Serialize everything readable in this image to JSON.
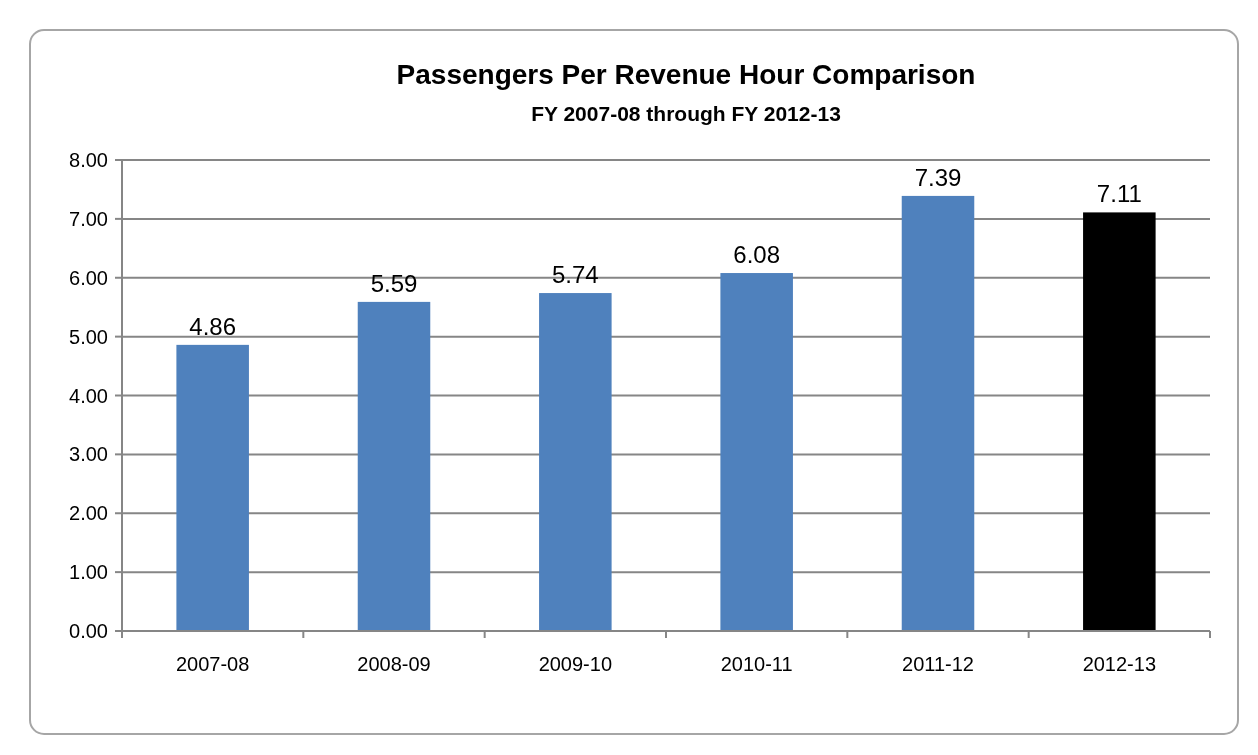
{
  "chart_data": {
    "type": "bar",
    "title": "Passengers Per Revenue Hour Comparison",
    "subtitle": "FY 2007-08 through FY 2012-13",
    "categories": [
      "2007-08",
      "2008-09",
      "2009-10",
      "2010-11",
      "2011-12",
      "2012-13"
    ],
    "values": [
      4.86,
      5.59,
      5.74,
      6.08,
      7.39,
      7.11
    ],
    "colors": [
      "#4f81bd",
      "#4f81bd",
      "#4f81bd",
      "#4f81bd",
      "#4f81bd",
      "#000000"
    ],
    "ylim": [
      0,
      8
    ],
    "yticks": [
      {
        "value": 0,
        "label": "0.00"
      },
      {
        "value": 1,
        "label": "1.00"
      },
      {
        "value": 2,
        "label": "2.00"
      },
      {
        "value": 3,
        "label": "3.00"
      },
      {
        "value": 4,
        "label": "4.00"
      },
      {
        "value": 5,
        "label": "5.00"
      },
      {
        "value": 6,
        "label": "6.00"
      },
      {
        "value": 7,
        "label": "7.00"
      },
      {
        "value": 8,
        "label": "8.00"
      }
    ],
    "grid": "y",
    "data_labels": true
  }
}
